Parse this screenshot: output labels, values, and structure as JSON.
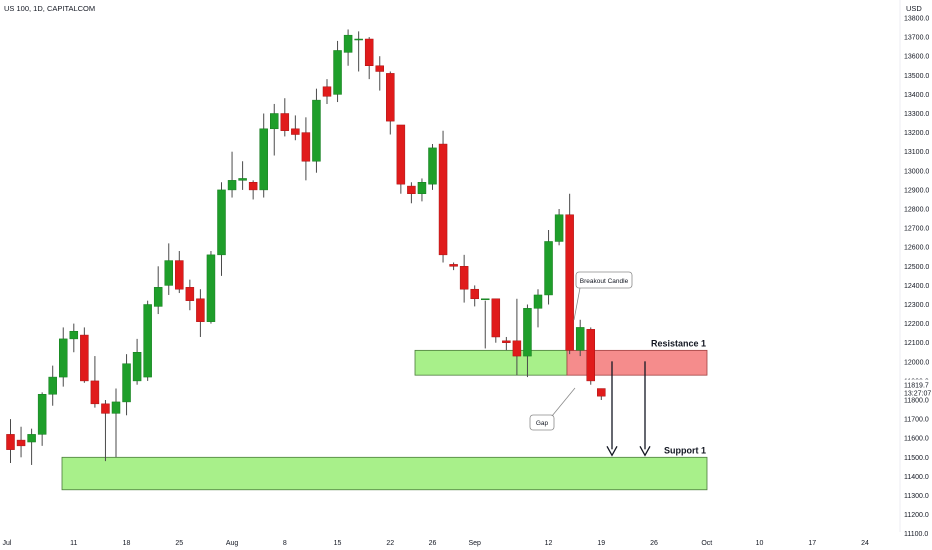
{
  "header": {
    "symbol_title": "US 100, 1D, CAPITALCOM",
    "currency": "USD"
  },
  "colors": {
    "up": "#1e9e2a",
    "down": "#e01b1b",
    "wick": "#4a4a4a",
    "support_fill": "#a8f08a",
    "resistance_green_fill": "#a8f08a",
    "resistance_red_fill": "#f58c8c",
    "price_marker_bg": "#e01b1b"
  },
  "chart_data": {
    "type": "candlestick",
    "title": "US 100, 1D, CAPITALCOM",
    "ylabel": "USD",
    "ylim": [
      11050,
      13850
    ],
    "y_ticks": [
      13800,
      13700,
      13600,
      13500,
      13400,
      13300,
      13200,
      13100,
      13000,
      12900,
      12800,
      12700,
      12600,
      12500,
      12400,
      12300,
      12200,
      12100,
      12000,
      11900,
      11800,
      11700,
      11600,
      11500,
      11400,
      11300,
      11200,
      11100
    ],
    "x_ticks": [
      {
        "label": "Jul",
        "t": -2
      },
      {
        "label": "11",
        "t": 6
      },
      {
        "label": "18",
        "t": 11
      },
      {
        "label": "25",
        "t": 16
      },
      {
        "label": "Aug",
        "t": 21
      },
      {
        "label": "8",
        "t": 26
      },
      {
        "label": "15",
        "t": 31
      },
      {
        "label": "22",
        "t": 36
      },
      {
        "label": "26",
        "t": 40
      },
      {
        "label": "Sep",
        "t": 44
      },
      {
        "label": "12",
        "t": 51
      },
      {
        "label": "19",
        "t": 56
      },
      {
        "label": "26",
        "t": 61
      },
      {
        "label": "Oct",
        "t": 66
      },
      {
        "label": "10",
        "t": 71
      },
      {
        "label": "17",
        "t": 76
      },
      {
        "label": "24",
        "t": 81
      }
    ],
    "candles": [
      {
        "t": 0,
        "o": 11620,
        "h": 11700,
        "l": 11470,
        "c": 11540
      },
      {
        "t": 1,
        "o": 11590,
        "h": 11660,
        "l": 11500,
        "c": 11560
      },
      {
        "t": 2,
        "o": 11580,
        "h": 11650,
        "l": 11460,
        "c": 11620
      },
      {
        "t": 3,
        "o": 11620,
        "h": 11840,
        "l": 11560,
        "c": 11830
      },
      {
        "t": 4,
        "o": 11830,
        "h": 11980,
        "l": 11770,
        "c": 11920
      },
      {
        "t": 5,
        "o": 11920,
        "h": 12180,
        "l": 11870,
        "c": 12120
      },
      {
        "t": 6,
        "o": 12120,
        "h": 12200,
        "l": 12050,
        "c": 12160
      },
      {
        "t": 7,
        "o": 12140,
        "h": 12180,
        "l": 11890,
        "c": 11900
      },
      {
        "t": 8,
        "o": 11900,
        "h": 12030,
        "l": 11760,
        "c": 11780
      },
      {
        "t": 9,
        "o": 11780,
        "h": 11800,
        "l": 11480,
        "c": 11730
      },
      {
        "t": 10,
        "o": 11730,
        "h": 11860,
        "l": 11500,
        "c": 11790
      },
      {
        "t": 11,
        "o": 11790,
        "h": 12040,
        "l": 11720,
        "c": 11990
      },
      {
        "t": 12,
        "o": 11900,
        "h": 12120,
        "l": 11880,
        "c": 12050
      },
      {
        "t": 13,
        "o": 11920,
        "h": 12320,
        "l": 11900,
        "c": 12300
      },
      {
        "t": 14,
        "o": 12290,
        "h": 12500,
        "l": 12250,
        "c": 12390
      },
      {
        "t": 15,
        "o": 12400,
        "h": 12620,
        "l": 12350,
        "c": 12530
      },
      {
        "t": 16,
        "o": 12530,
        "h": 12580,
        "l": 12360,
        "c": 12380
      },
      {
        "t": 17,
        "o": 12390,
        "h": 12430,
        "l": 12270,
        "c": 12320
      },
      {
        "t": 18,
        "o": 12330,
        "h": 12380,
        "l": 12130,
        "c": 12210
      },
      {
        "t": 19,
        "o": 12210,
        "h": 12580,
        "l": 12200,
        "c": 12560
      },
      {
        "t": 20,
        "o": 12560,
        "h": 12940,
        "l": 12450,
        "c": 12900
      },
      {
        "t": 21,
        "o": 12900,
        "h": 13100,
        "l": 12860,
        "c": 12950
      },
      {
        "t": 22,
        "o": 12950,
        "h": 13050,
        "l": 12900,
        "c": 12960
      },
      {
        "t": 23,
        "o": 12940,
        "h": 12950,
        "l": 12850,
        "c": 12900
      },
      {
        "t": 24,
        "o": 12900,
        "h": 13300,
        "l": 12860,
        "c": 13220
      },
      {
        "t": 25,
        "o": 13220,
        "h": 13350,
        "l": 13080,
        "c": 13300
      },
      {
        "t": 26,
        "o": 13300,
        "h": 13380,
        "l": 13180,
        "c": 13210
      },
      {
        "t": 27,
        "o": 13220,
        "h": 13290,
        "l": 13160,
        "c": 13190
      },
      {
        "t": 28,
        "o": 13200,
        "h": 13280,
        "l": 12950,
        "c": 13050
      },
      {
        "t": 29,
        "o": 13050,
        "h": 13430,
        "l": 12990,
        "c": 13370
      },
      {
        "t": 30,
        "o": 13440,
        "h": 13480,
        "l": 13350,
        "c": 13390
      },
      {
        "t": 31,
        "o": 13400,
        "h": 13680,
        "l": 13360,
        "c": 13630
      },
      {
        "t": 32,
        "o": 13620,
        "h": 13740,
        "l": 13550,
        "c": 13710
      },
      {
        "t": 33,
        "o": 13690,
        "h": 13730,
        "l": 13520,
        "c": 13690
      },
      {
        "t": 34,
        "o": 13690,
        "h": 13700,
        "l": 13480,
        "c": 13550
      },
      {
        "t": 35,
        "o": 13550,
        "h": 13600,
        "l": 13420,
        "c": 13520
      },
      {
        "t": 36,
        "o": 13510,
        "h": 13520,
        "l": 13190,
        "c": 13260
      },
      {
        "t": 37,
        "o": 13240,
        "h": 13240,
        "l": 12880,
        "c": 12930
      },
      {
        "t": 38,
        "o": 12920,
        "h": 12940,
        "l": 12830,
        "c": 12880
      },
      {
        "t": 39,
        "o": 12880,
        "h": 12960,
        "l": 12840,
        "c": 12940
      },
      {
        "t": 40,
        "o": 12930,
        "h": 13140,
        "l": 12900,
        "c": 13120
      },
      {
        "t": 41,
        "o": 13140,
        "h": 13210,
        "l": 12520,
        "c": 12560
      },
      {
        "t": 42,
        "o": 12510,
        "h": 12520,
        "l": 12480,
        "c": 12500
      },
      {
        "t": 43,
        "o": 12500,
        "h": 12560,
        "l": 12310,
        "c": 12380
      },
      {
        "t": 44,
        "o": 12380,
        "h": 12400,
        "l": 12290,
        "c": 12330
      },
      {
        "t": 45,
        "o": 12330,
        "h": 12320,
        "l": 12070,
        "c": 12330
      },
      {
        "t": 46,
        "o": 12330,
        "h": 12330,
        "l": 12100,
        "c": 12130
      },
      {
        "t": 47,
        "o": 12110,
        "h": 12130,
        "l": 12060,
        "c": 12100
      },
      {
        "t": 48,
        "o": 12110,
        "h": 12330,
        "l": 11930,
        "c": 12030
      },
      {
        "t": 49,
        "o": 12030,
        "h": 12300,
        "l": 11920,
        "c": 12280
      },
      {
        "t": 50,
        "o": 12280,
        "h": 12380,
        "l": 12180,
        "c": 12350
      },
      {
        "t": 51,
        "o": 12350,
        "h": 12690,
        "l": 12300,
        "c": 12630
      },
      {
        "t": 52,
        "o": 12630,
        "h": 12800,
        "l": 12610,
        "c": 12770
      },
      {
        "t": 53,
        "o": 12770,
        "h": 12880,
        "l": 12040,
        "c": 12060
      },
      {
        "t": 54,
        "o": 12060,
        "h": 12220,
        "l": 12030,
        "c": 12180
      },
      {
        "t": 55,
        "o": 12170,
        "h": 12180,
        "l": 11880,
        "c": 11900
      },
      {
        "t": 56,
        "o": 11860,
        "h": 11860,
        "l": 11800,
        "c": 11820
      }
    ],
    "zones": [
      {
        "name": "Resistance 1",
        "lower": 11930,
        "upper": 12060
      },
      {
        "name": "Support 1",
        "lower": 11330,
        "upper": 11500
      }
    ],
    "annotations": [
      {
        "text": "Breakout Candle"
      },
      {
        "text": "Gap"
      }
    ],
    "current_price": {
      "value": "11819.7",
      "countdown": "13:27:07"
    }
  }
}
